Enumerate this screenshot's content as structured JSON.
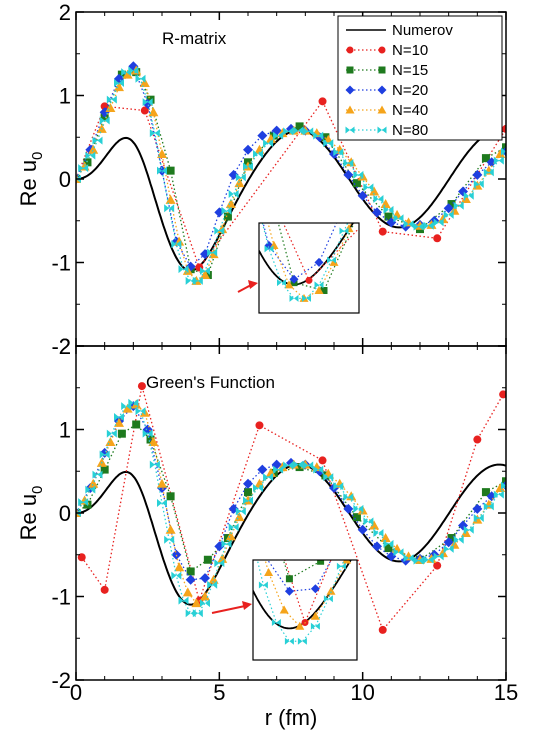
{
  "chart_data": {
    "type": "line",
    "xlabel": "r (fm)",
    "xlim": [
      0,
      15
    ],
    "xticks": [
      "0",
      "5",
      "10",
      "15"
    ],
    "legend": {
      "placement": "top-right",
      "entries": [
        "Numerov",
        "N=10",
        "N=15",
        "N=20",
        "N=40",
        "N=80"
      ]
    },
    "styles": {
      "Numerov": {
        "color": "#000000",
        "marker": "none",
        "dash": "solid"
      },
      "N=10": {
        "color": "#e8211f",
        "marker": "circle",
        "dash": "dotted"
      },
      "N=15": {
        "color": "#1e7a1e",
        "marker": "square",
        "dash": "dotted"
      },
      "N=20": {
        "color": "#1f3fe0",
        "marker": "diamond",
        "dash": "dotted"
      },
      "N=40": {
        "color": "#f5a41b",
        "marker": "triangle",
        "dash": "dotted"
      },
      "N=80": {
        "color": "#28d0d6",
        "marker": "bowtie",
        "dash": "dotted"
      }
    },
    "panels": [
      {
        "title": "R-matrix",
        "ylabel": "Re u",
        "ylabel_sub": "0",
        "ylim": [
          -2,
          2
        ],
        "yticks": [
          "2",
          "1",
          "0",
          "-1",
          "-2"
        ],
        "series": [
          {
            "name": "N=10",
            "x": [
              0,
              1,
              2.4,
              4.3,
              8.6,
              10.7,
              12.6,
              15
            ],
            "y": [
              0,
              0.87,
              0.82,
              -1.06,
              0.93,
              -0.63,
              -0.71,
              0.6
            ]
          },
          {
            "name": "N=15",
            "x": [
              0,
              0.4,
              1,
              1.6,
              2.1,
              2.6,
              3.3,
              4,
              4.6,
              5.3,
              6,
              6.9,
              7.8,
              8.7,
              9.8,
              10.9,
              12,
              13.1,
              14.3,
              15
            ],
            "y": [
              0,
              0.2,
              0.75,
              1.25,
              1.28,
              0.95,
              0.1,
              -1.08,
              -1.15,
              -0.45,
              0.2,
              0.52,
              0.63,
              0.5,
              -0.05,
              -0.45,
              -0.6,
              -0.3,
              0.25,
              0.38
            ]
          },
          {
            "name": "N=20",
            "x": [
              0,
              0.5,
              1,
              1.5,
              2,
              2.5,
              3,
              3.5,
              4,
              4.5,
              5,
              5.5,
              6,
              6.5,
              7,
              7.5,
              8,
              8.5,
              9,
              9.5,
              10,
              10.5,
              11,
              11.5,
              12,
              12.5,
              13,
              13.5,
              14,
              14.5,
              15
            ],
            "y": [
              0,
              0.35,
              0.8,
              1.2,
              1.35,
              0.9,
              0.1,
              -0.75,
              -1.05,
              -0.9,
              -0.4,
              0.05,
              0.35,
              0.52,
              0.58,
              0.6,
              0.58,
              0.5,
              0.3,
              0.05,
              -0.2,
              -0.4,
              -0.52,
              -0.57,
              -0.55,
              -0.5,
              -0.35,
              -0.15,
              0.05,
              0.2,
              0.33
            ]
          },
          {
            "name": "N=40",
            "x": [
              0,
              0.3,
              0.6,
              0.9,
              1.2,
              1.5,
              1.8,
              2.1,
              2.4,
              2.7,
              3,
              3.3,
              3.6,
              3.9,
              4.2,
              4.5,
              4.8,
              5.1,
              5.4,
              5.7,
              6,
              6.4,
              6.8,
              7.2,
              7.6,
              8,
              8.4,
              8.8,
              9.2,
              9.6,
              10,
              10.4,
              10.8,
              11.2,
              11.6,
              12,
              12.4,
              12.8,
              13.2,
              13.6,
              14,
              14.4,
              14.8
            ],
            "y": [
              0,
              0.15,
              0.35,
              0.6,
              0.85,
              1.1,
              1.25,
              1.3,
              1.15,
              0.8,
              0.3,
              -0.25,
              -0.75,
              -1.1,
              -1.22,
              -1.15,
              -0.9,
              -0.6,
              -0.3,
              -0.05,
              0.15,
              0.35,
              0.48,
              0.55,
              0.58,
              0.58,
              0.55,
              0.47,
              0.35,
              0.2,
              0.03,
              -0.15,
              -0.3,
              -0.43,
              -0.52,
              -0.56,
              -0.55,
              -0.48,
              -0.38,
              -0.24,
              -0.08,
              0.1,
              0.3
            ]
          },
          {
            "name": "N=80",
            "x": [
              0,
              0.25,
              0.5,
              0.75,
              1,
              1.25,
              1.5,
              1.75,
              2,
              2.25,
              2.5,
              2.75,
              3,
              3.25,
              3.5,
              3.75,
              4,
              4.25,
              4.5,
              4.75,
              5,
              5.25,
              5.5,
              5.75,
              6,
              6.35,
              6.7,
              7.05,
              7.4,
              7.75,
              8.1,
              8.45,
              8.8,
              9.15,
              9.5,
              9.85,
              10.2,
              10.55,
              10.9,
              11.25,
              11.6,
              11.95,
              12.3,
              12.65,
              13,
              13.35,
              13.7,
              14.05,
              14.4,
              14.75,
              15
            ],
            "y": [
              0,
              0.13,
              0.28,
              0.46,
              0.7,
              0.95,
              1.15,
              1.28,
              1.3,
              1.2,
              0.92,
              0.55,
              0.1,
              -0.35,
              -0.78,
              -1.08,
              -1.22,
              -1.22,
              -1.1,
              -0.88,
              -0.62,
              -0.38,
              -0.18,
              0.02,
              0.15,
              0.3,
              0.43,
              0.52,
              0.57,
              0.58,
              0.57,
              0.52,
              0.43,
              0.32,
              0.19,
              0.05,
              -0.1,
              -0.24,
              -0.37,
              -0.47,
              -0.54,
              -0.57,
              -0.56,
              -0.52,
              -0.43,
              -0.32,
              -0.2,
              -0.06,
              0.08,
              0.22,
              0.33
            ]
          }
        ]
      },
      {
        "title": "Green's Function",
        "ylabel": "Re u",
        "ylabel_sub": "0",
        "ylim": [
          -2,
          2
        ],
        "yticks": [
          "2",
          "1",
          "0",
          "-1",
          "-2"
        ],
        "series": [
          {
            "name": "N=10",
            "x": [
              0.2,
              1,
              2.3,
              4.3,
              6.4,
              8.6,
              10.7,
              12.6,
              14,
              14.9
            ],
            "y": [
              -0.53,
              -0.92,
              1.52,
              -1.05,
              1.05,
              0.63,
              -1.4,
              -0.63,
              0.88,
              1.42
            ]
          },
          {
            "name": "N=15",
            "x": [
              0,
              0.4,
              1,
              1.6,
              2.1,
              2.6,
              3.3,
              4,
              4.6,
              5.3,
              6,
              6.9,
              7.8,
              8.7,
              9.8,
              10.9,
              12,
              13.1,
              14.3,
              15
            ],
            "y": [
              0,
              0.1,
              0.52,
              0.95,
              1.06,
              0.88,
              0.2,
              -0.7,
              -0.56,
              -0.3,
              0.25,
              0.48,
              0.55,
              0.45,
              -0.05,
              -0.42,
              -0.56,
              -0.3,
              0.25,
              0.38
            ]
          },
          {
            "name": "N=20",
            "x": [
              0,
              0.5,
              1,
              1.5,
              2,
              2.5,
              3,
              3.5,
              4,
              4.5,
              5,
              5.5,
              6,
              6.5,
              7,
              7.5,
              8,
              8.5,
              9,
              9.5,
              10,
              10.5,
              11,
              11.5,
              12,
              12.5,
              13,
              13.5,
              14,
              14.5,
              15
            ],
            "y": [
              0,
              0.3,
              0.72,
              1.1,
              1.28,
              1.0,
              0.3,
              -0.5,
              -0.8,
              -0.78,
              -0.4,
              0.05,
              0.35,
              0.52,
              0.58,
              0.6,
              0.58,
              0.5,
              0.3,
              0.05,
              -0.2,
              -0.4,
              -0.52,
              -0.57,
              -0.55,
              -0.5,
              -0.35,
              -0.15,
              0.05,
              0.2,
              0.33
            ]
          },
          {
            "name": "N=40",
            "x": [
              0,
              0.3,
              0.6,
              0.9,
              1.2,
              1.5,
              1.8,
              2.1,
              2.4,
              2.7,
              3,
              3.3,
              3.6,
              3.9,
              4.2,
              4.5,
              4.8,
              5.1,
              5.4,
              5.7,
              6,
              6.4,
              6.8,
              7.2,
              7.6,
              8,
              8.4,
              8.8,
              9.2,
              9.6,
              10,
              10.4,
              10.8,
              11.2,
              11.6,
              12,
              12.4,
              12.8,
              13.2,
              13.6,
              14,
              14.4,
              14.8
            ],
            "y": [
              0,
              0.15,
              0.35,
              0.6,
              0.85,
              1.08,
              1.25,
              1.3,
              1.2,
              0.85,
              0.35,
              -0.2,
              -0.65,
              -0.95,
              -1.08,
              -1.0,
              -0.8,
              -0.55,
              -0.28,
              -0.05,
              0.15,
              0.35,
              0.48,
              0.55,
              0.58,
              0.58,
              0.55,
              0.47,
              0.35,
              0.2,
              0.03,
              -0.15,
              -0.3,
              -0.43,
              -0.52,
              -0.56,
              -0.55,
              -0.48,
              -0.38,
              -0.24,
              -0.08,
              0.1,
              0.3
            ]
          },
          {
            "name": "N=80",
            "x": [
              0,
              0.25,
              0.5,
              0.75,
              1,
              1.25,
              1.5,
              1.75,
              2,
              2.25,
              2.5,
              2.75,
              3,
              3.25,
              3.5,
              3.75,
              4,
              4.25,
              4.5,
              4.75,
              5,
              5.25,
              5.5,
              5.75,
              6,
              6.35,
              6.7,
              7.05,
              7.4,
              7.75,
              8.1,
              8.45,
              8.8,
              9.15,
              9.5,
              9.85,
              10.2,
              10.55,
              10.9,
              11.25,
              11.6,
              11.95,
              12.3,
              12.65,
              13,
              13.35,
              13.7,
              14.05,
              14.4,
              14.75,
              15
            ],
            "y": [
              0,
              0.13,
              0.28,
              0.46,
              0.7,
              0.95,
              1.15,
              1.28,
              1.32,
              1.22,
              0.95,
              0.58,
              0.12,
              -0.32,
              -0.75,
              -1.05,
              -1.2,
              -1.2,
              -1.08,
              -0.86,
              -0.6,
              -0.37,
              -0.17,
              0.02,
              0.15,
              0.3,
              0.43,
              0.52,
              0.57,
              0.58,
              0.57,
              0.52,
              0.43,
              0.32,
              0.19,
              0.05,
              -0.1,
              -0.24,
              -0.37,
              -0.47,
              -0.54,
              -0.57,
              -0.56,
              -0.52,
              -0.43,
              -0.32,
              -0.2,
              -0.06,
              0.08,
              0.22,
              0.33
            ]
          }
        ]
      }
    ]
  }
}
